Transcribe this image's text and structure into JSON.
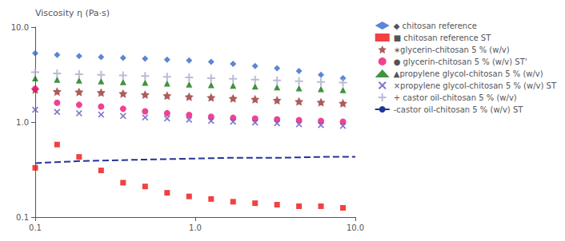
{
  "chart_data": {
    "type": "scatter",
    "ylabel": "Viscosity η (Pa·s)",
    "log": true,
    "grid": false,
    "legend": "upper right",
    "xlim": [
      0.1,
      10.0
    ],
    "ylim": [
      0.1,
      10.0
    ],
    "xticks": [
      0.1,
      {
        "value": 1.0,
        "label": "1.0"
      },
      {
        "value": 10.0,
        "label": "10.0"
      }
    ],
    "yticks": [
      0.1,
      {
        "value": 1.0,
        "label": "1.0"
      },
      {
        "value": 10.0,
        "label": "10.0"
      }
    ],
    "series": [
      {
        "name": "◆ chitosan reference",
        "type": "scatter",
        "color": "#3366cc",
        "marker": "diamond",
        "x": [
          0.1,
          0.137,
          0.188,
          0.258,
          0.354,
          0.486,
          0.667,
          0.915,
          1.256,
          1.723,
          2.364,
          3.243,
          4.448,
          6.1,
          8.37
        ],
        "values": [
          5.3,
          5.1,
          4.95,
          4.85,
          4.75,
          4.65,
          4.55,
          4.45,
          4.3,
          4.1,
          3.9,
          3.7,
          3.45,
          3.15,
          2.9
        ]
      },
      {
        "name": "■ chitosan reference ST",
        "type": "scatter",
        "color": "#ee1111",
        "marker": "square",
        "x": [
          0.1,
          0.137,
          0.188,
          0.258,
          0.354,
          0.486,
          0.667,
          0.915,
          1.256,
          1.723,
          2.364,
          3.243,
          4.448,
          6.1,
          8.37
        ],
        "values": [
          0.33,
          0.58,
          0.43,
          0.31,
          0.23,
          0.21,
          0.18,
          0.165,
          0.155,
          0.145,
          0.14,
          0.135,
          0.13,
          0.13,
          0.125
        ]
      },
      {
        "name": "∗glycerin-chitosan 5 % (w/v)",
        "type": "scatter",
        "color": "#993333",
        "marker": "star",
        "x": [
          0.1,
          0.137,
          0.188,
          0.258,
          0.354,
          0.486,
          0.667,
          0.915,
          1.256,
          1.723,
          2.364,
          3.243,
          4.448,
          6.1,
          8.37
        ],
        "values": [
          2.2,
          2.1,
          2.08,
          2.05,
          2.0,
          1.95,
          1.9,
          1.85,
          1.82,
          1.78,
          1.74,
          1.7,
          1.65,
          1.62,
          1.58
        ]
      },
      {
        "name": "● glycerin-chitosan 5 % (w/v) STʼ",
        "type": "scatter",
        "color": "#ee1177",
        "marker": "circle",
        "x": [
          0.1,
          0.137,
          0.188,
          0.258,
          0.354,
          0.486,
          0.667,
          0.915,
          1.256,
          1.723,
          2.364,
          3.243,
          4.448,
          6.1,
          8.37
        ],
        "values": [
          2.25,
          1.6,
          1.52,
          1.46,
          1.38,
          1.3,
          1.24,
          1.19,
          1.14,
          1.11,
          1.09,
          1.07,
          1.05,
          1.03,
          1.01
        ]
      },
      {
        "name": "▲propylene glycol-chitosan 5 % (w/v)",
        "type": "scatter",
        "color": "#117711",
        "marker": "triangle",
        "x": [
          0.1,
          0.137,
          0.188,
          0.258,
          0.354,
          0.486,
          0.667,
          0.915,
          1.256,
          1.723,
          2.364,
          3.243,
          4.448,
          6.1,
          8.37
        ],
        "values": [
          2.9,
          2.8,
          2.75,
          2.7,
          2.65,
          2.6,
          2.55,
          2.5,
          2.46,
          2.42,
          2.38,
          2.33,
          2.28,
          2.23,
          2.18
        ]
      },
      {
        "name": "×propylene glycol-chitosan 5 % (w/v) ST",
        "type": "scatter",
        "color": "#6655bb",
        "marker": "x",
        "x": [
          0.1,
          0.137,
          0.188,
          0.258,
          0.354,
          0.486,
          0.667,
          0.915,
          1.256,
          1.723,
          2.364,
          3.243,
          4.448,
          6.1,
          8.37
        ],
        "values": [
          1.35,
          1.28,
          1.24,
          1.2,
          1.16,
          1.12,
          1.09,
          1.06,
          1.03,
          1.01,
          0.99,
          0.97,
          0.95,
          0.93,
          0.91
        ]
      },
      {
        "name": "+ castor oil-chitosan 5 % (w/v)",
        "type": "scatter",
        "color": "#aaaacc",
        "marker": "plus",
        "x": [
          0.1,
          0.137,
          0.188,
          0.258,
          0.354,
          0.486,
          0.667,
          0.915,
          1.256,
          1.723,
          2.364,
          3.243,
          4.448,
          6.1,
          8.37
        ],
        "values": [
          3.35,
          3.25,
          3.2,
          3.15,
          3.1,
          3.05,
          3.0,
          2.95,
          2.9,
          2.85,
          2.8,
          2.75,
          2.7,
          2.65,
          2.6
        ]
      },
      {
        "name": "-castor oil-chitosan 5 % (w/v) ST",
        "type": "line",
        "color": "#223399",
        "line_style": "dashed",
        "x": [
          0.1,
          0.2,
          0.4,
          0.8,
          1.6,
          3.16,
          6.3,
          10.0
        ],
        "values": [
          0.37,
          0.39,
          0.4,
          0.41,
          0.42,
          0.42,
          0.43,
          0.43
        ]
      }
    ]
  }
}
